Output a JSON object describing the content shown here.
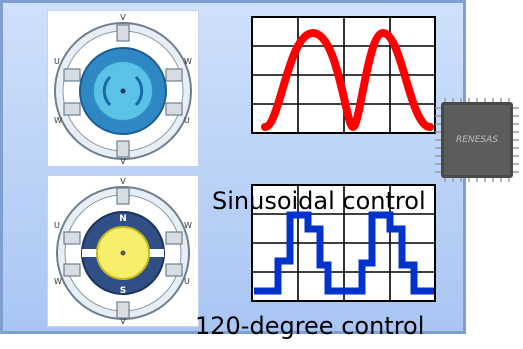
{
  "captions": {
    "sinusoidal": "Sinusoidal control",
    "trapezoidal": "120-degree control"
  },
  "motor_top": {
    "phase_labels": [
      "U",
      "W",
      "V",
      "V",
      "W",
      "U"
    ]
  },
  "motor_bottom": {
    "phase_labels": [
      "U",
      "W",
      "V",
      "V",
      "W",
      "U"
    ],
    "pole_labels": [
      "N",
      "S"
    ]
  },
  "chip_brand": "RENESAS",
  "colors": {
    "sine_wave": "#ff0000",
    "square_wave": "#0033cc",
    "panel_top": "#cfe0fb",
    "panel_bottom": "#a9c6f3"
  }
}
